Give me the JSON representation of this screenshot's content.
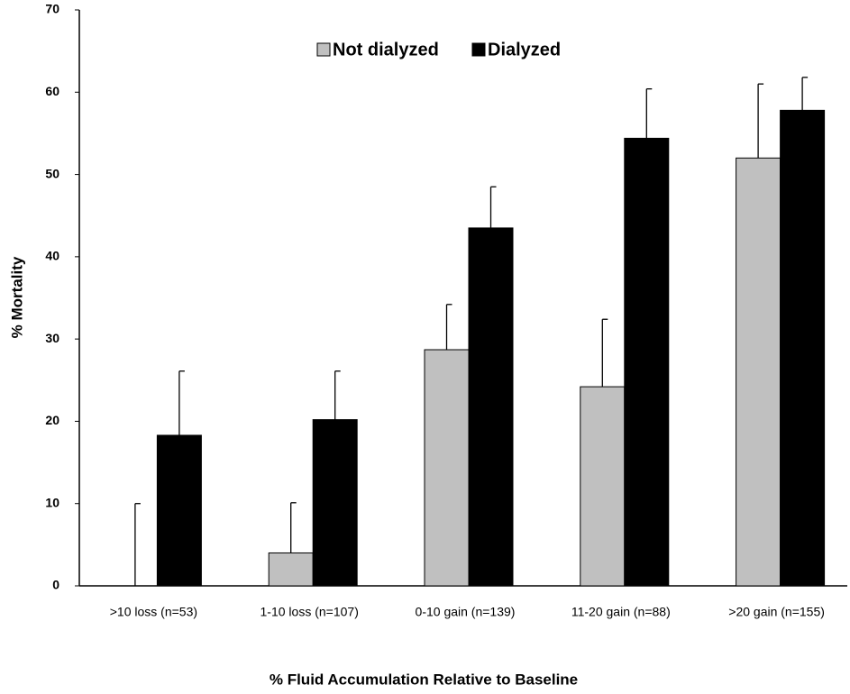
{
  "chart_data": {
    "type": "bar",
    "x_label": "% Fluid Accumulation Relative to Baseline",
    "y_label": "% Mortality",
    "categories": [
      ">10 loss (n=53)",
      "1-10 loss (n=107)",
      "0-10 gain (n=139)",
      "11-20 gain (n=88)",
      ">20 gain (n=155)"
    ],
    "series": [
      {
        "name": "Not dialyzed",
        "color": "#c0c0c0",
        "values": [
          0,
          4,
          28.7,
          24.2,
          52
        ],
        "errors": [
          10,
          6.1,
          5.5,
          8.2,
          9
        ]
      },
      {
        "name": "Dialyzed",
        "color": "#000000",
        "values": [
          18.3,
          20.2,
          43.5,
          54.4,
          57.8
        ],
        "errors": [
          7.8,
          5.9,
          5,
          6,
          4
        ]
      }
    ],
    "ylim": [
      0,
      70
    ],
    "yticks": [
      0,
      10,
      20,
      30,
      40,
      50,
      60,
      70
    ],
    "grid": false
  }
}
